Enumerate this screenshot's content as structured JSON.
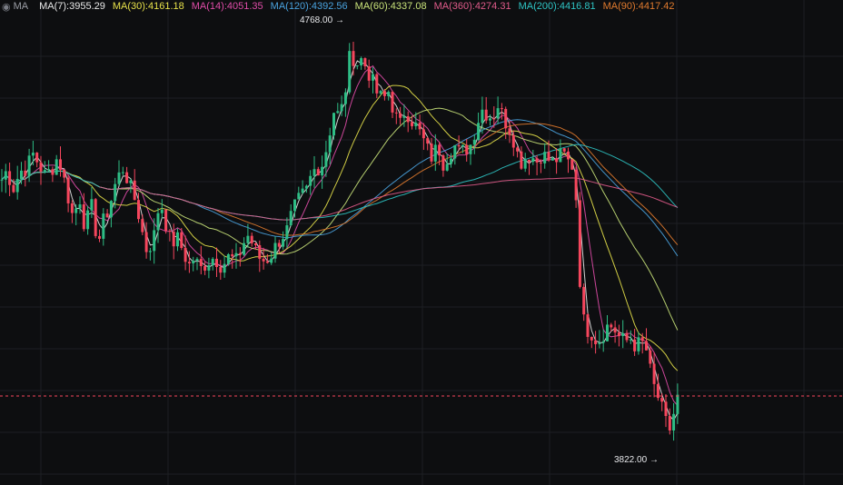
{
  "colors": {
    "background": "#0d0e10",
    "grid": "#1d1f23",
    "up": "#2ebd85",
    "down": "#f6465d",
    "current_price_line": "#f6465d"
  },
  "legend": {
    "icon": "eye-icon",
    "prefix": "MA",
    "items": [
      {
        "label": "MA(7):",
        "value": "3955.29",
        "color": "#e8e8e8"
      },
      {
        "label": "MA(30):",
        "value": "4161.18",
        "color": "#e6e14a"
      },
      {
        "label": "MA(14):",
        "value": "4051.35",
        "color": "#e04ca8"
      },
      {
        "label": "MA(120):",
        "value": "4392.56",
        "color": "#4aa3df"
      },
      {
        "label": "MA(60):",
        "value": "4337.08",
        "color": "#c9e37a"
      },
      {
        "label": "MA(360):",
        "value": "4274.31",
        "color": "#e05b8a"
      },
      {
        "label": "MA(200):",
        "value": "4416.81",
        "color": "#2ec4c4"
      },
      {
        "label": "MA(90):",
        "value": "4417.42",
        "color": "#e07a2e"
      }
    ]
  },
  "annotations": {
    "high_label": "4768.00",
    "low_label": "3822.00",
    "arrow": "→"
  },
  "chart_data": {
    "type": "candlestick",
    "ylim": [
      3790,
      4810
    ],
    "grid": true,
    "current_price": 3960,
    "high": 4768,
    "low": 3822,
    "moving_averages": [
      {
        "name": "MA(7)",
        "value": 3955.29
      },
      {
        "name": "MA(30)",
        "value": 4161.18
      },
      {
        "name": "MA(14)",
        "value": 4051.35
      },
      {
        "name": "MA(120)",
        "value": 4392.56
      },
      {
        "name": "MA(60)",
        "value": 4337.08
      },
      {
        "name": "MA(360)",
        "value": 4274.31
      },
      {
        "name": "MA(200)",
        "value": 4416.81
      },
      {
        "name": "MA(90)",
        "value": 4417.42
      }
    ],
    "close_path": [
      [
        0,
        4435
      ],
      [
        8,
        4465
      ],
      [
        14,
        4420
      ],
      [
        22,
        4460
      ],
      [
        30,
        4470
      ],
      [
        36,
        4500
      ],
      [
        42,
        4480
      ],
      [
        50,
        4450
      ],
      [
        58,
        4470
      ],
      [
        64,
        4495
      ],
      [
        72,
        4430
      ],
      [
        80,
        4360
      ],
      [
        88,
        4400
      ],
      [
        94,
        4330
      ],
      [
        100,
        4390
      ],
      [
        108,
        4300
      ],
      [
        114,
        4350
      ],
      [
        120,
        4380
      ],
      [
        128,
        4440
      ],
      [
        136,
        4470
      ],
      [
        144,
        4420
      ],
      [
        150,
        4390
      ],
      [
        156,
        4330
      ],
      [
        162,
        4280
      ],
      [
        170,
        4320
      ],
      [
        176,
        4400
      ],
      [
        182,
        4350
      ],
      [
        188,
        4300
      ],
      [
        196,
        4310
      ],
      [
        202,
        4280
      ],
      [
        208,
        4250
      ],
      [
        214,
        4270
      ],
      [
        220,
        4240
      ],
      [
        228,
        4260
      ],
      [
        236,
        4270
      ],
      [
        244,
        4250
      ],
      [
        252,
        4270
      ],
      [
        260,
        4260
      ],
      [
        266,
        4290
      ],
      [
        272,
        4320
      ],
      [
        278,
        4300
      ],
      [
        284,
        4270
      ],
      [
        292,
        4260
      ],
      [
        300,
        4280
      ],
      [
        308,
        4310
      ],
      [
        316,
        4330
      ],
      [
        322,
        4370
      ],
      [
        330,
        4400
      ],
      [
        338,
        4420
      ],
      [
        344,
        4460
      ],
      [
        350,
        4470
      ],
      [
        356,
        4480
      ],
      [
        362,
        4540
      ],
      [
        368,
        4600
      ],
      [
        374,
        4580
      ],
      [
        380,
        4640
      ],
      [
        386,
        4730
      ],
      [
        392,
        4700
      ],
      [
        398,
        4710
      ],
      [
        404,
        4690
      ],
      [
        410,
        4660
      ],
      [
        416,
        4630
      ],
      [
        422,
        4620
      ],
      [
        428,
        4640
      ],
      [
        434,
        4590
      ],
      [
        440,
        4560
      ],
      [
        446,
        4600
      ],
      [
        452,
        4580
      ],
      [
        458,
        4560
      ],
      [
        464,
        4540
      ],
      [
        470,
        4510
      ],
      [
        476,
        4490
      ],
      [
        482,
        4520
      ],
      [
        488,
        4480
      ],
      [
        494,
        4500
      ],
      [
        500,
        4520
      ],
      [
        506,
        4500
      ],
      [
        512,
        4510
      ],
      [
        518,
        4520
      ],
      [
        524,
        4560
      ],
      [
        530,
        4600
      ],
      [
        536,
        4590
      ],
      [
        542,
        4580
      ],
      [
        548,
        4610
      ],
      [
        554,
        4580
      ],
      [
        560,
        4560
      ],
      [
        566,
        4530
      ],
      [
        572,
        4480
      ],
      [
        578,
        4490
      ],
      [
        584,
        4500
      ],
      [
        590,
        4480
      ],
      [
        596,
        4500
      ],
      [
        602,
        4490
      ],
      [
        608,
        4480
      ],
      [
        614,
        4490
      ],
      [
        620,
        4500
      ],
      [
        626,
        4480
      ],
      [
        632,
        4470
      ],
      [
        636,
        4340
      ],
      [
        640,
        4140
      ],
      [
        646,
        4110
      ],
      [
        652,
        4100
      ],
      [
        658,
        4080
      ],
      [
        664,
        4100
      ],
      [
        670,
        4120
      ],
      [
        676,
        4110
      ],
      [
        682,
        4090
      ],
      [
        688,
        4080
      ],
      [
        694,
        4090
      ],
      [
        700,
        4070
      ],
      [
        706,
        4080
      ],
      [
        712,
        4060
      ],
      [
        718,
        3990
      ],
      [
        724,
        3960
      ],
      [
        730,
        3920
      ],
      [
        736,
        3880
      ],
      [
        740,
        3900
      ],
      [
        744,
        3950
      ],
      [
        748,
        3960
      ]
    ]
  }
}
